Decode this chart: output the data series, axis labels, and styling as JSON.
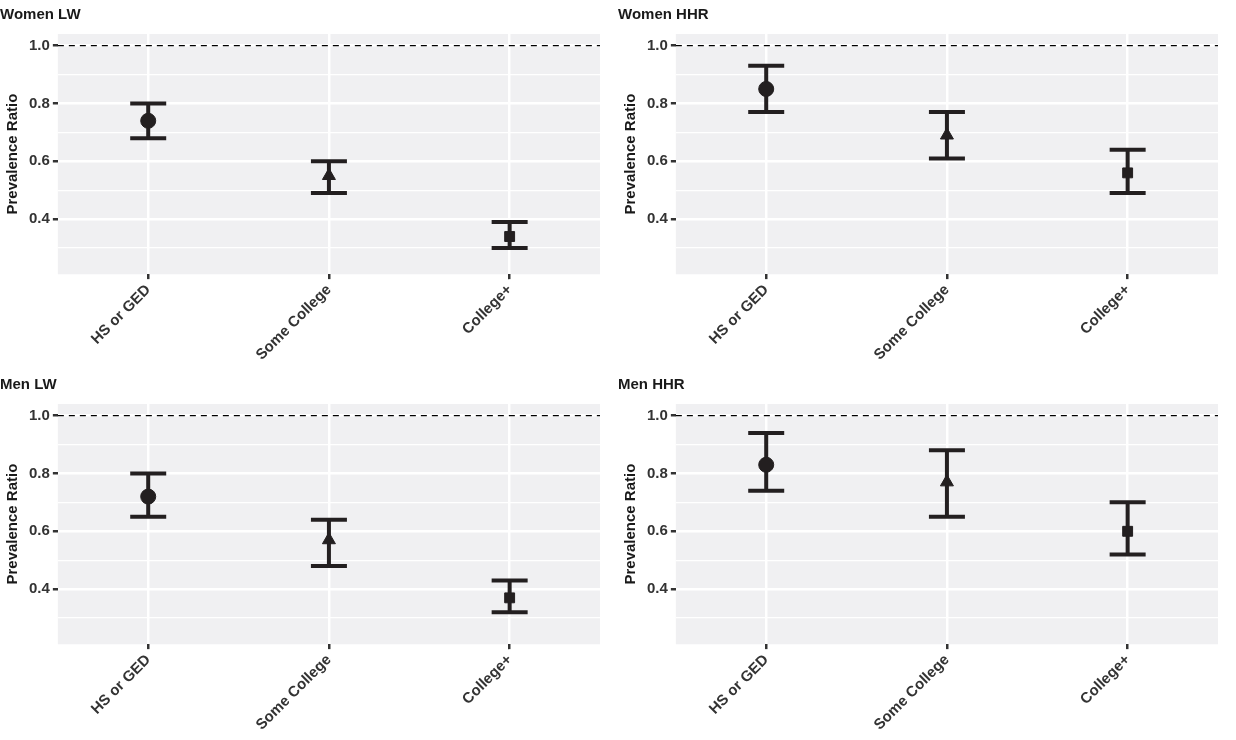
{
  "chart_data": [
    {
      "type": "scatter",
      "title": "Women LW",
      "ylabel": "Prevalence Ratio",
      "categories": [
        "HS or GED",
        "Some College",
        "College+"
      ],
      "ylim": [
        0.21,
        1.04
      ],
      "yticks": [
        {
          "value": 0.3,
          "label": null
        },
        0.4,
        {
          "value": 0.5,
          "label": null
        },
        0.6,
        {
          "value": 0.7,
          "label": null
        },
        0.8,
        {
          "value": 0.9,
          "label": null
        },
        {
          "value": 1,
          "label": "1.0"
        }
      ],
      "grid": true,
      "ref_lines": [
        {
          "axis": "y",
          "value": 1.0,
          "line_style": "dashed",
          "color": "#000000"
        }
      ],
      "series": [
        {
          "x": [
            "HS or GED"
          ],
          "values": [
            0.74
          ],
          "errors": [
            [
              0.68,
              0.8
            ]
          ],
          "marker": "circle",
          "color": "#231f20"
        },
        {
          "x": [
            "Some College"
          ],
          "values": [
            0.55
          ],
          "errors": [
            [
              0.49,
              0.6
            ]
          ],
          "marker": "triangle",
          "color": "#231f20"
        },
        {
          "x": [
            "College+"
          ],
          "values": [
            0.34
          ],
          "errors": [
            [
              0.3,
              0.39
            ]
          ],
          "marker": "square",
          "color": "#231f20"
        }
      ]
    },
    {
      "type": "scatter",
      "title": "Women HHR",
      "ylabel": "Prevalence Ratio",
      "categories": [
        "HS or GED",
        "Some College",
        "College+"
      ],
      "ylim": [
        0.21,
        1.04
      ],
      "yticks": [
        {
          "value": 0.3,
          "label": null
        },
        0.4,
        {
          "value": 0.5,
          "label": null
        },
        0.6,
        {
          "value": 0.7,
          "label": null
        },
        0.8,
        {
          "value": 0.9,
          "label": null
        },
        {
          "value": 1,
          "label": "1.0"
        }
      ],
      "grid": true,
      "ref_lines": [
        {
          "axis": "y",
          "value": 1.0,
          "line_style": "dashed",
          "color": "#000000"
        }
      ],
      "series": [
        {
          "x": [
            "HS or GED"
          ],
          "values": [
            0.85
          ],
          "errors": [
            [
              0.77,
              0.93
            ]
          ],
          "marker": "circle",
          "color": "#231f20"
        },
        {
          "x": [
            "Some College"
          ],
          "values": [
            0.69
          ],
          "errors": [
            [
              0.61,
              0.77
            ]
          ],
          "marker": "triangle",
          "color": "#231f20"
        },
        {
          "x": [
            "College+"
          ],
          "values": [
            0.56
          ],
          "errors": [
            [
              0.49,
              0.64
            ]
          ],
          "marker": "square",
          "color": "#231f20"
        }
      ]
    },
    {
      "type": "scatter",
      "title": "Men LW",
      "ylabel": "Prevalence Ratio",
      "categories": [
        "HS or GED",
        "Some College",
        "College+"
      ],
      "ylim": [
        0.21,
        1.04
      ],
      "yticks": [
        {
          "value": 0.3,
          "label": null
        },
        0.4,
        {
          "value": 0.5,
          "label": null
        },
        0.6,
        {
          "value": 0.7,
          "label": null
        },
        0.8,
        {
          "value": 0.9,
          "label": null
        },
        {
          "value": 1,
          "label": "1.0"
        }
      ],
      "grid": true,
      "ref_lines": [
        {
          "axis": "y",
          "value": 1.0,
          "line_style": "dashed",
          "color": "#000000"
        }
      ],
      "series": [
        {
          "x": [
            "HS or GED"
          ],
          "values": [
            0.72
          ],
          "errors": [
            [
              0.65,
              0.8
            ]
          ],
          "marker": "circle",
          "color": "#231f20"
        },
        {
          "x": [
            "Some College"
          ],
          "values": [
            0.57
          ],
          "errors": [
            [
              0.48,
              0.64
            ]
          ],
          "marker": "triangle",
          "color": "#231f20"
        },
        {
          "x": [
            "College+"
          ],
          "values": [
            0.37
          ],
          "errors": [
            [
              0.32,
              0.43
            ]
          ],
          "marker": "square",
          "color": "#231f20"
        }
      ]
    },
    {
      "type": "scatter",
      "title": "Men HHR",
      "ylabel": "Prevalence Ratio",
      "categories": [
        "HS or GED",
        "Some College",
        "College+"
      ],
      "ylim": [
        0.21,
        1.04
      ],
      "yticks": [
        {
          "value": 0.3,
          "label": null
        },
        0.4,
        {
          "value": 0.5,
          "label": null
        },
        0.6,
        {
          "value": 0.7,
          "label": null
        },
        0.8,
        {
          "value": 0.9,
          "label": null
        },
        {
          "value": 1,
          "label": "1.0"
        }
      ],
      "grid": true,
      "ref_lines": [
        {
          "axis": "y",
          "value": 1.0,
          "line_style": "dashed",
          "color": "#000000"
        }
      ],
      "series": [
        {
          "x": [
            "HS or GED"
          ],
          "values": [
            0.83
          ],
          "errors": [
            [
              0.74,
              0.94
            ]
          ],
          "marker": "circle",
          "color": "#231f20"
        },
        {
          "x": [
            "Some College"
          ],
          "values": [
            0.77
          ],
          "errors": [
            [
              0.65,
              0.88
            ]
          ],
          "marker": "triangle",
          "color": "#231f20"
        },
        {
          "x": [
            "College+"
          ],
          "values": [
            0.6
          ],
          "errors": [
            [
              0.52,
              0.7
            ]
          ],
          "marker": "square",
          "color": "#231f20"
        }
      ]
    }
  ]
}
